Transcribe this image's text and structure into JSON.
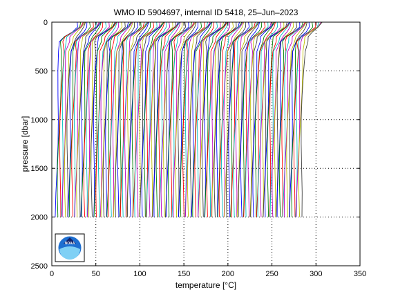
{
  "chart_data": {
    "type": "line",
    "title": "WMO ID 5904697, internal ID 5418, 25–Jun–2023",
    "xlabel": "temperature [°C]",
    "ylabel": "pressure [dbar]",
    "xlim": [
      0,
      350
    ],
    "ylim": [
      0,
      2500
    ],
    "y_reversed": true,
    "grid": true,
    "xticks": [
      0,
      50,
      100,
      150,
      200,
      250,
      300,
      350
    ],
    "yticks": [
      0,
      500,
      1000,
      1500,
      2000,
      2500
    ],
    "xtick_labels": [
      "0",
      "50",
      "100",
      "150",
      "200",
      "250",
      "300",
      "350"
    ],
    "ytick_labels": [
      "0",
      "500",
      "1000",
      "1500",
      "2000",
      "2500"
    ],
    "n_profiles": 140,
    "profile_offset_step": 2,
    "first_profile_deep_temperature": 5,
    "profile_pressures": [
      0,
      50,
      100,
      150,
      200,
      300,
      500,
      750,
      1000,
      1250,
      1500,
      1750,
      2000
    ],
    "profile_shape_temperature": [
      26,
      24,
      18,
      11,
      8,
      6,
      5,
      4.2,
      3.6,
      3.1,
      2.7,
      2.4,
      2.2
    ],
    "series_colors": [
      "#0000ff",
      "#008000",
      "#ff0000",
      "#00bfbf",
      "#bf00bf",
      "#bfbf00",
      "#404040"
    ],
    "logo": {
      "label": "NOAA"
    }
  }
}
